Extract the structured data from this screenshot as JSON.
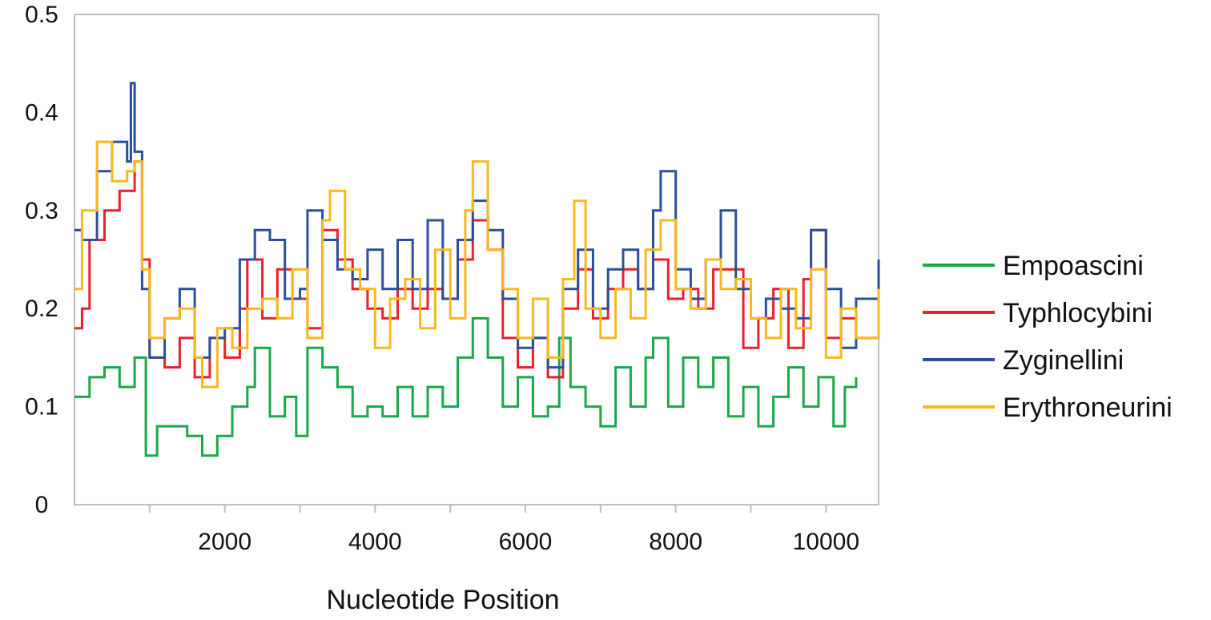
{
  "chart_data": {
    "type": "line",
    "title": "",
    "xlabel": "Nucleotide Position",
    "ylabel": "",
    "xlim": [
      0,
      10700
    ],
    "ylim": [
      0,
      0.5
    ],
    "xticks": [
      2000,
      4000,
      6000,
      8000,
      10000
    ],
    "yticks": [
      0,
      0.1,
      0.2,
      0.3,
      0.4,
      0.5
    ],
    "grid": false,
    "legend_position": "right",
    "series": [
      {
        "name": "Empoascini",
        "color": "#19a84a",
        "x": [
          0,
          200,
          400,
          600,
          800,
          950,
          1100,
          1300,
          1500,
          1700,
          1900,
          2100,
          2300,
          2400,
          2600,
          2800,
          2950,
          3100,
          3300,
          3500,
          3700,
          3900,
          4100,
          4300,
          4500,
          4700,
          4900,
          5100,
          5300,
          5500,
          5700,
          5900,
          6100,
          6300,
          6450,
          6600,
          6800,
          7000,
          7200,
          7400,
          7600,
          7700,
          7900,
          8100,
          8300,
          8500,
          8700,
          8900,
          9100,
          9300,
          9500,
          9700,
          9900,
          10100,
          10250,
          10400
        ],
        "values": [
          0.11,
          0.13,
          0.14,
          0.12,
          0.15,
          0.05,
          0.08,
          0.08,
          0.07,
          0.05,
          0.07,
          0.1,
          0.12,
          0.16,
          0.09,
          0.11,
          0.07,
          0.16,
          0.14,
          0.12,
          0.09,
          0.1,
          0.09,
          0.12,
          0.09,
          0.12,
          0.1,
          0.15,
          0.19,
          0.15,
          0.1,
          0.13,
          0.09,
          0.1,
          0.17,
          0.12,
          0.1,
          0.08,
          0.14,
          0.1,
          0.15,
          0.17,
          0.1,
          0.15,
          0.12,
          0.15,
          0.09,
          0.12,
          0.08,
          0.11,
          0.14,
          0.1,
          0.13,
          0.08,
          0.12,
          0.13
        ]
      },
      {
        "name": "Typhlocybini",
        "color": "#e8212a",
        "x": [
          0,
          100,
          200,
          400,
          600,
          800,
          900,
          1000,
          1200,
          1400,
          1600,
          1800,
          2000,
          2200,
          2300,
          2500,
          2700,
          2900,
          3100,
          3300,
          3500,
          3700,
          3900,
          4100,
          4300,
          4500,
          4700,
          4900,
          5100,
          5300,
          5500,
          5700,
          5900,
          6100,
          6300,
          6500,
          6700,
          6900,
          7100,
          7300,
          7500,
          7700,
          7900,
          8100,
          8300,
          8500,
          8700,
          8900,
          9100,
          9300,
          9500,
          9700,
          9800,
          10000,
          10200,
          10400,
          10700
        ],
        "values": [
          0.18,
          0.2,
          0.27,
          0.3,
          0.32,
          0.35,
          0.25,
          0.15,
          0.14,
          0.17,
          0.13,
          0.17,
          0.15,
          0.2,
          0.25,
          0.19,
          0.24,
          0.21,
          0.18,
          0.28,
          0.25,
          0.22,
          0.2,
          0.19,
          0.22,
          0.2,
          0.22,
          0.21,
          0.25,
          0.29,
          0.26,
          0.17,
          0.14,
          0.17,
          0.13,
          0.2,
          0.24,
          0.19,
          0.22,
          0.24,
          0.22,
          0.25,
          0.21,
          0.22,
          0.2,
          0.24,
          0.24,
          0.16,
          0.19,
          0.22,
          0.16,
          0.23,
          0.28,
          0.17,
          0.19,
          0.17,
          0.23
        ]
      },
      {
        "name": "Zyginellini",
        "color": "#2c4f9a",
        "x": [
          0,
          100,
          300,
          500,
          700,
          750,
          800,
          900,
          1000,
          1200,
          1400,
          1600,
          1800,
          2000,
          2200,
          2400,
          2600,
          2800,
          3000,
          3100,
          3300,
          3500,
          3700,
          3900,
          4100,
          4300,
          4500,
          4700,
          4900,
          5100,
          5300,
          5500,
          5700,
          5900,
          6100,
          6300,
          6500,
          6700,
          6900,
          7100,
          7300,
          7500,
          7700,
          7800,
          8000,
          8200,
          8400,
          8600,
          8800,
          9000,
          9200,
          9400,
          9600,
          9800,
          10000,
          10200,
          10400,
          10700
        ],
        "values": [
          0.28,
          0.27,
          0.34,
          0.37,
          0.35,
          0.43,
          0.36,
          0.22,
          0.15,
          0.19,
          0.22,
          0.15,
          0.17,
          0.18,
          0.25,
          0.28,
          0.27,
          0.21,
          0.22,
          0.3,
          0.27,
          0.24,
          0.23,
          0.26,
          0.22,
          0.27,
          0.22,
          0.29,
          0.21,
          0.27,
          0.31,
          0.28,
          0.21,
          0.16,
          0.17,
          0.14,
          0.22,
          0.26,
          0.2,
          0.24,
          0.26,
          0.22,
          0.3,
          0.34,
          0.24,
          0.21,
          0.25,
          0.3,
          0.22,
          0.19,
          0.21,
          0.2,
          0.19,
          0.28,
          0.22,
          0.16,
          0.21,
          0.25
        ]
      },
      {
        "name": "Erythroneurini",
        "color": "#f8b91c",
        "x": [
          0,
          100,
          300,
          500,
          700,
          800,
          900,
          1000,
          1200,
          1400,
          1600,
          1700,
          1900,
          2100,
          2300,
          2500,
          2700,
          2900,
          3100,
          3300,
          3400,
          3600,
          3800,
          4000,
          4200,
          4400,
          4600,
          4800,
          5000,
          5200,
          5300,
          5500,
          5700,
          5900,
          6100,
          6300,
          6500,
          6650,
          6800,
          7000,
          7200,
          7400,
          7600,
          7800,
          8000,
          8200,
          8400,
          8600,
          8800,
          9000,
          9200,
          9400,
          9600,
          9800,
          10000,
          10200,
          10400,
          10700
        ],
        "values": [
          0.22,
          0.3,
          0.37,
          0.33,
          0.34,
          0.35,
          0.24,
          0.17,
          0.19,
          0.2,
          0.15,
          0.12,
          0.18,
          0.16,
          0.2,
          0.21,
          0.19,
          0.24,
          0.17,
          0.29,
          0.32,
          0.24,
          0.22,
          0.16,
          0.21,
          0.23,
          0.18,
          0.26,
          0.19,
          0.3,
          0.35,
          0.26,
          0.22,
          0.17,
          0.21,
          0.15,
          0.23,
          0.31,
          0.2,
          0.17,
          0.22,
          0.19,
          0.26,
          0.29,
          0.22,
          0.2,
          0.25,
          0.22,
          0.23,
          0.19,
          0.17,
          0.22,
          0.18,
          0.24,
          0.15,
          0.2,
          0.17,
          0.22
        ]
      }
    ]
  }
}
